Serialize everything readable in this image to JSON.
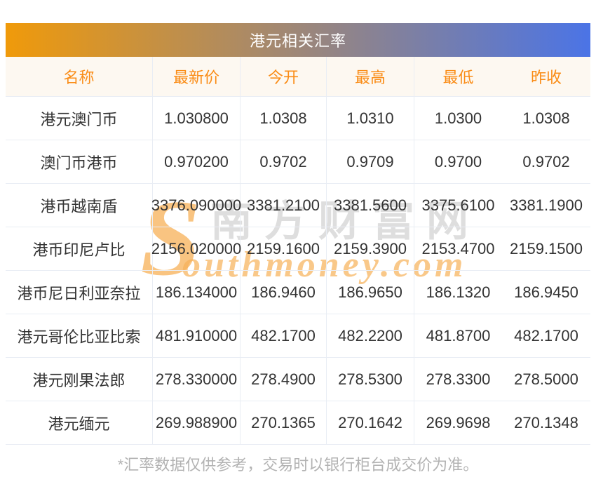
{
  "page": {
    "title": "港元相关汇率",
    "footnote": "*汇率数据仅供参考，交易时以银行柜台成交价为准。"
  },
  "colors": {
    "gradient_left": "#f09a0a",
    "gradient_right": "#4b74e6",
    "title_text": "#ffffff",
    "header_bg": "#fdf8f1",
    "header_text": "#fa8c16",
    "cell_text": "#333333",
    "border": "#e9edf4",
    "footnote_text": "#b3b3b3",
    "watermark_gray": "#d6d6d6",
    "watermark_orange": "#f7b158"
  },
  "watermark": {
    "initial": "S",
    "cn_text": "南方财富网",
    "script_text": "outhmoney.com"
  },
  "chart_data": {
    "type": "table",
    "title": "港元相关汇率",
    "columns": [
      "名称",
      "最新价",
      "今开",
      "最高",
      "最低",
      "昨收"
    ],
    "rows": [
      {
        "name": "港元澳门币",
        "values": [
          "1.030800",
          "1.0308",
          "1.0310",
          "1.0300",
          "1.0308"
        ]
      },
      {
        "name": "澳门币港币",
        "values": [
          "0.970200",
          "0.9702",
          "0.9709",
          "0.9700",
          "0.9702"
        ]
      },
      {
        "name": "港币越南盾",
        "values": [
          "3376.090000",
          "3381.2100",
          "3381.5600",
          "3375.6100",
          "3381.1900"
        ]
      },
      {
        "name": "港币印尼卢比",
        "values": [
          "2156.020000",
          "2159.1600",
          "2159.3900",
          "2153.4700",
          "2159.1500"
        ]
      },
      {
        "name": "港币尼日利亚奈拉",
        "values": [
          "186.134000",
          "186.9460",
          "186.9650",
          "186.1320",
          "186.9450"
        ]
      },
      {
        "name": "港元哥伦比亚比索",
        "values": [
          "481.910000",
          "482.1700",
          "482.2200",
          "481.8700",
          "482.1700"
        ]
      },
      {
        "name": "港元刚果法郎",
        "values": [
          "278.330000",
          "278.4900",
          "278.5300",
          "278.3300",
          "278.5000"
        ]
      },
      {
        "name": "港元缅元",
        "values": [
          "269.988900",
          "270.1365",
          "270.1642",
          "269.9698",
          "270.1348"
        ]
      }
    ]
  }
}
